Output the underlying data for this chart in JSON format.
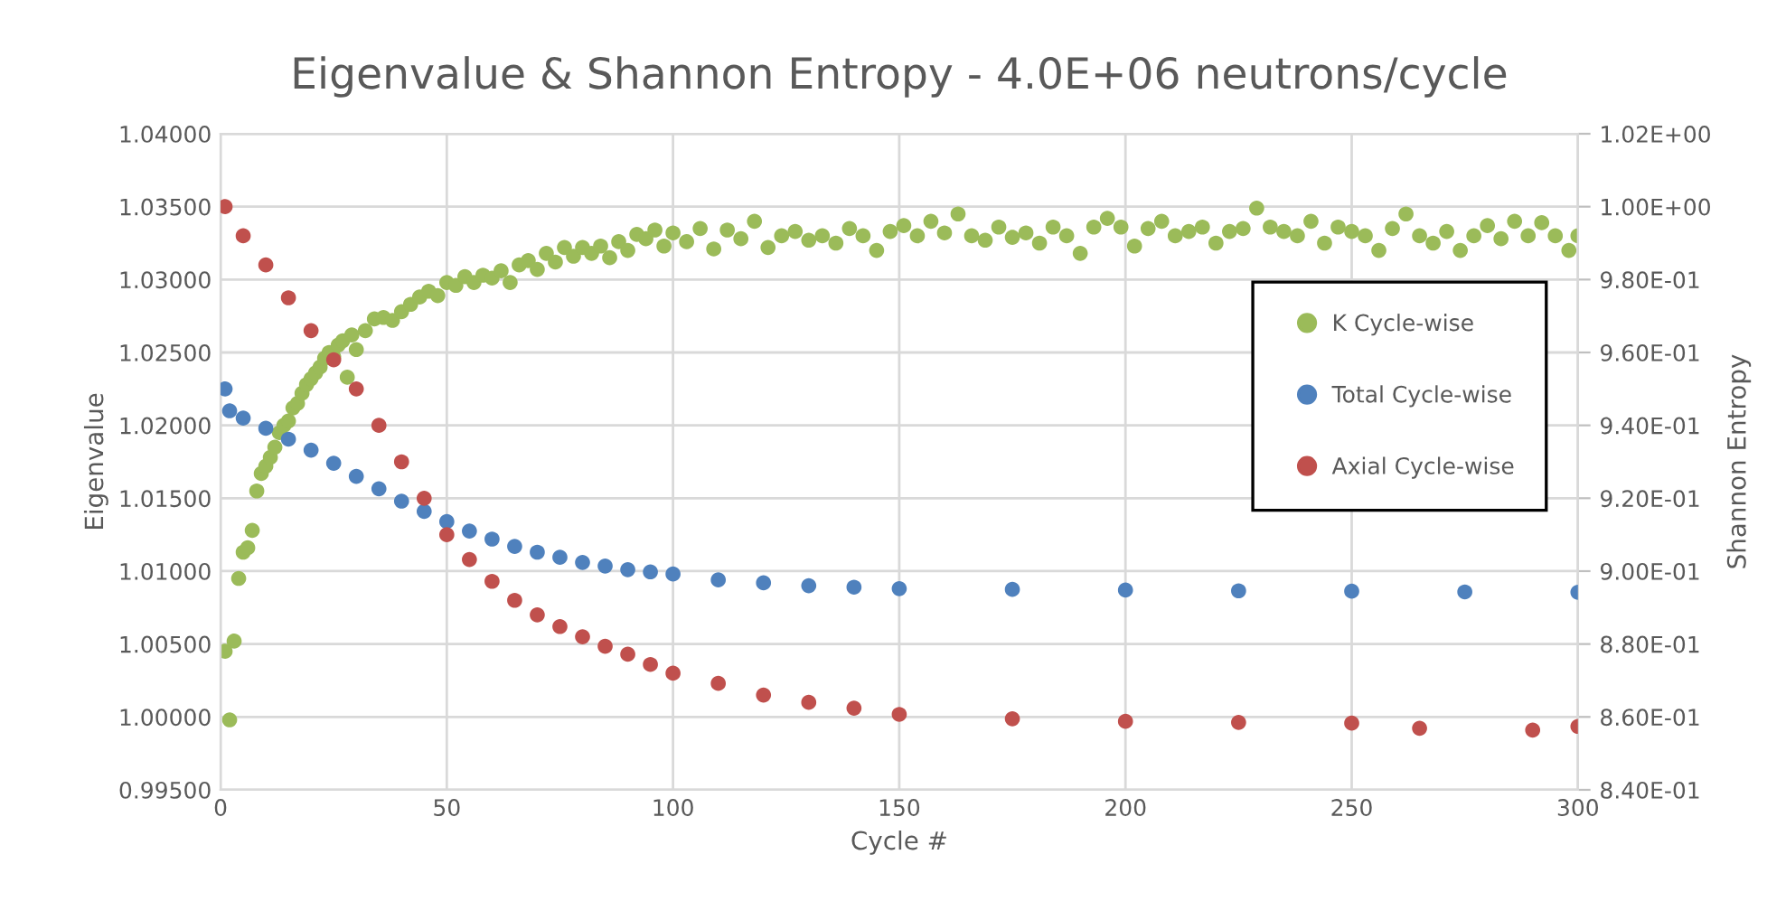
{
  "chart_data": {
    "type": "scatter",
    "title": "Eigenvalue & Shannon Entropy - 4.0E+06 neutrons/cycle",
    "xlabel": "Cycle #",
    "ylabel": "Eigenvalue",
    "y2label": "Shannon Entropy",
    "xlim": [
      0,
      300
    ],
    "xticks": [
      0,
      50,
      100,
      150,
      200,
      250,
      300
    ],
    "ylim": [
      0.995,
      1.04
    ],
    "yticks": [
      {
        "value": 0.995,
        "label": "0.99500"
      },
      {
        "value": 1.0,
        "label": "1.00000"
      },
      {
        "value": 1.005,
        "label": "1.00500"
      },
      {
        "value": 1.01,
        "label": "1.01000"
      },
      {
        "value": 1.015,
        "label": "1.01500"
      },
      {
        "value": 1.02,
        "label": "1.02000"
      },
      {
        "value": 1.025,
        "label": "1.02500"
      },
      {
        "value": 1.03,
        "label": "1.03000"
      },
      {
        "value": 1.035,
        "label": "1.03500"
      },
      {
        "value": 1.04,
        "label": "1.04000"
      }
    ],
    "y2lim": [
      0.84,
      1.02
    ],
    "y2ticks": [
      {
        "value": 0.84,
        "label": "8.40E-01"
      },
      {
        "value": 0.86,
        "label": "8.60E-01"
      },
      {
        "value": 0.88,
        "label": "8.80E-01"
      },
      {
        "value": 0.9,
        "label": "9.00E-01"
      },
      {
        "value": 0.92,
        "label": "9.20E-01"
      },
      {
        "value": 0.94,
        "label": "9.40E-01"
      },
      {
        "value": 0.96,
        "label": "9.60E-01"
      },
      {
        "value": 0.98,
        "label": "9.80E-01"
      },
      {
        "value": 1.0,
        "label": "1.00E+00"
      },
      {
        "value": 1.02,
        "label": "1.02E+00"
      }
    ],
    "grid": true,
    "legend": "right",
    "marker": "circle",
    "series": [
      {
        "name": "K Cycle-wise",
        "color": "#9bbb59",
        "x": [
          1,
          2,
          3,
          4,
          5,
          6,
          7,
          8,
          9,
          10,
          11,
          12,
          13,
          14,
          15,
          16,
          17,
          18,
          19,
          20,
          21,
          22,
          23,
          24,
          25,
          26,
          27,
          28,
          29,
          30,
          32,
          34,
          36,
          38,
          40,
          42,
          44,
          46,
          48,
          50,
          52,
          54,
          56,
          58,
          60,
          62,
          64,
          66,
          68,
          70,
          72,
          74,
          76,
          78,
          80,
          82,
          84,
          86,
          88,
          90,
          92,
          94,
          96,
          98,
          100,
          103,
          106,
          109,
          112,
          115,
          118,
          121,
          124,
          127,
          130,
          133,
          136,
          139,
          142,
          145,
          148,
          151,
          154,
          157,
          160,
          163,
          166,
          169,
          172,
          175,
          178,
          181,
          184,
          187,
          190,
          193,
          196,
          199,
          202,
          205,
          208,
          211,
          214,
          217,
          220,
          223,
          226,
          229,
          232,
          235,
          238,
          241,
          244,
          247,
          250,
          253,
          256,
          259,
          262,
          265,
          268,
          271,
          274,
          277,
          280,
          283,
          286,
          289,
          292,
          295,
          298,
          300
        ],
        "values": [
          1.0045,
          0.9998,
          1.0052,
          1.0095,
          1.0113,
          1.0116,
          1.0128,
          1.0155,
          1.0167,
          1.0172,
          1.0178,
          1.0185,
          1.0195,
          1.02,
          1.0203,
          1.0212,
          1.0215,
          1.0222,
          1.0228,
          1.0232,
          1.0236,
          1.024,
          1.0246,
          1.025,
          1.0247,
          1.0255,
          1.0258,
          1.0233,
          1.0262,
          1.0252,
          1.0265,
          1.0273,
          1.0274,
          1.0272,
          1.0278,
          1.0283,
          1.0288,
          1.0292,
          1.0289,
          1.0298,
          1.0296,
          1.0302,
          1.0298,
          1.0303,
          1.0301,
          1.0306,
          1.0298,
          1.031,
          1.0313,
          1.0307,
          1.0318,
          1.0312,
          1.0322,
          1.0316,
          1.0322,
          1.0318,
          1.0323,
          1.0315,
          1.0326,
          1.032,
          1.0331,
          1.0328,
          1.0334,
          1.0323,
          1.0332,
          1.0326,
          1.0335,
          1.0321,
          1.0334,
          1.0328,
          1.034,
          1.0322,
          1.033,
          1.0333,
          1.0327,
          1.033,
          1.0325,
          1.0335,
          1.033,
          1.032,
          1.0333,
          1.0337,
          1.033,
          1.034,
          1.0332,
          1.0345,
          1.033,
          1.0327,
          1.0336,
          1.0329,
          1.0332,
          1.0325,
          1.0336,
          1.033,
          1.0318,
          1.0336,
          1.0342,
          1.0336,
          1.0323,
          1.0335,
          1.034,
          1.033,
          1.0333,
          1.0336,
          1.0325,
          1.0333,
          1.0335,
          1.0349,
          1.0336,
          1.0333,
          1.033,
          1.034,
          1.0325,
          1.0336,
          1.0333,
          1.033,
          1.032,
          1.0335,
          1.0345,
          1.033,
          1.0325,
          1.0333,
          1.032,
          1.033,
          1.0337,
          1.0328,
          1.034,
          1.033,
          1.0339,
          1.033,
          1.032,
          1.033
        ]
      },
      {
        "name": "Total Cycle-wise",
        "color": "#4f81bd",
        "axis": "y2",
        "x": [
          1,
          2,
          5,
          10,
          15,
          20,
          25,
          30,
          35,
          40,
          45,
          50,
          55,
          60,
          65,
          70,
          75,
          80,
          85,
          90,
          95,
          100,
          110,
          120,
          130,
          140,
          150,
          175,
          200,
          225,
          250,
          275,
          300
        ],
        "values": [
          0.95,
          0.944,
          0.942,
          0.9392,
          0.9362,
          0.9332,
          0.9296,
          0.926,
          0.9226,
          0.9192,
          0.9164,
          0.9136,
          0.911,
          0.9088,
          0.9068,
          0.9052,
          0.9038,
          0.9024,
          0.9014,
          0.9004,
          0.8998,
          0.8992,
          0.8976,
          0.8968,
          0.896,
          0.8956,
          0.8952,
          0.895,
          0.8948,
          0.8946,
          0.8945,
          0.8943,
          0.8942
        ]
      },
      {
        "name": "Axial Cycle-wise",
        "color": "#c0504d",
        "axis": "y2",
        "x": [
          1,
          5,
          10,
          15,
          20,
          25,
          30,
          35,
          40,
          45,
          50,
          55,
          60,
          65,
          70,
          75,
          80,
          85,
          90,
          95,
          100,
          110,
          120,
          130,
          140,
          150,
          175,
          200,
          225,
          250,
          265,
          290,
          300
        ],
        "values": [
          1.0,
          0.992,
          0.984,
          0.975,
          0.966,
          0.958,
          0.95,
          0.94,
          0.93,
          0.92,
          0.91,
          0.9032,
          0.8972,
          0.892,
          0.888,
          0.8848,
          0.882,
          0.8794,
          0.8772,
          0.8744,
          0.872,
          0.8692,
          0.866,
          0.864,
          0.8624,
          0.8607,
          0.8595,
          0.8588,
          0.8585,
          0.8583,
          0.8569,
          0.8564,
          0.8574
        ]
      }
    ]
  }
}
